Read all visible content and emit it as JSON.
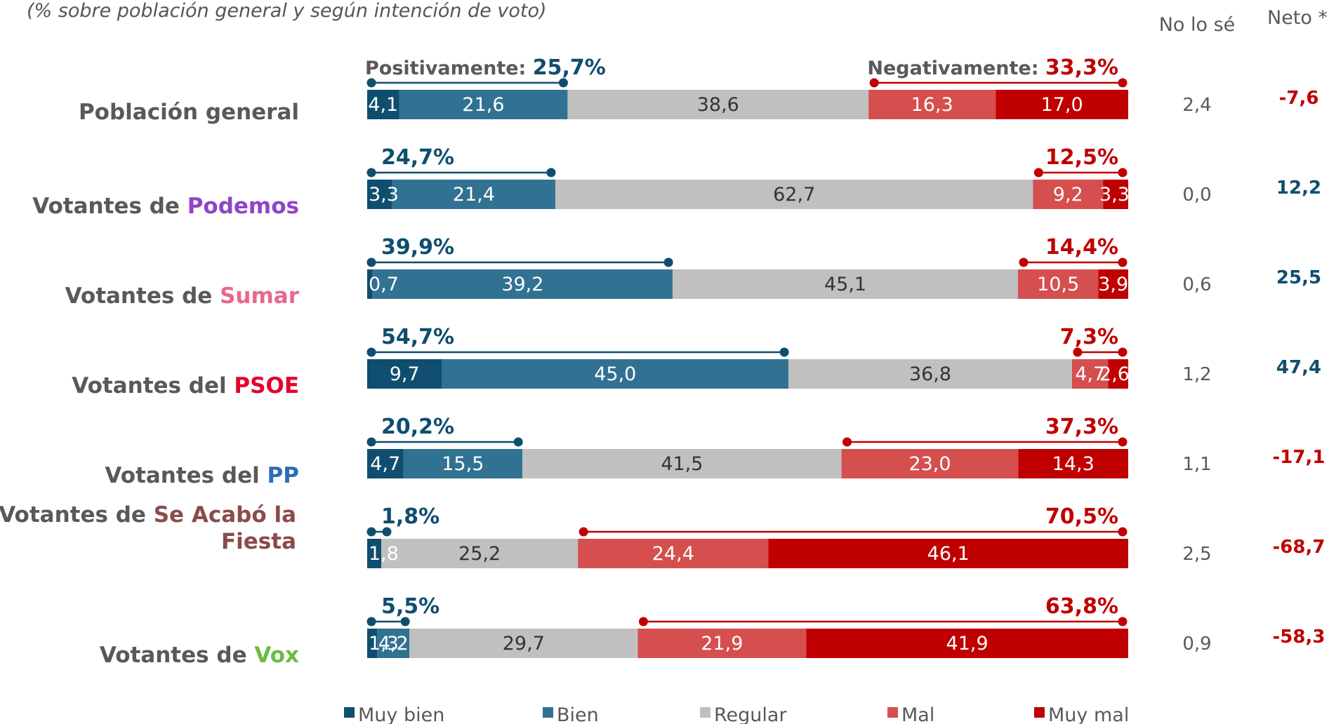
{
  "chart_data": {
    "type": "bar",
    "subtitle": "(% sobre población general y según intención de voto)",
    "orientation": "horizontal-stacked-100",
    "series_names": [
      "Muy bien",
      "Bien",
      "Regular",
      "Mal",
      "Muy mal"
    ],
    "colors": {
      "muy_bien": "#0f4e6e",
      "bien": "#317292",
      "regular": "#c0c0c0",
      "mal": "#d54f4f",
      "muy_mal": "#c00000",
      "positive_text": "#0f4e6e",
      "negative_text": "#c00000",
      "label_gray": "#595959",
      "podemos": "#8e44c9",
      "sumar": "#e8678d",
      "psoe": "#e4002b",
      "pp": "#2e6cb5",
      "salf": "#8b4b4b",
      "vox": "#6bba45"
    },
    "column_headers": {
      "no_lo_se": "No lo sé",
      "neto": "Neto *"
    },
    "summary_prefix": {
      "positive": "Positivamente: ",
      "negative": "Negativamente: "
    },
    "rows": [
      {
        "label_prefix": "Población general",
        "label_party": "",
        "party_color_key": "",
        "values": [
          4.1,
          21.6,
          38.6,
          16.3,
          17.0
        ],
        "value_labels": [
          "4,1",
          "21,6",
          "38,6",
          "16,3",
          "17,0"
        ],
        "positive": "25,7%",
        "negative": "33,3%",
        "no_lo_se": "2,4",
        "neto": "-7,6",
        "neto_sign": "negative"
      },
      {
        "label_prefix": "Votantes de ",
        "label_party": "Podemos",
        "party_color_key": "podemos",
        "values": [
          3.3,
          21.4,
          62.7,
          9.2,
          3.3
        ],
        "value_labels": [
          "3,3",
          "21,4",
          "62,7",
          "9,2",
          "3,3"
        ],
        "positive": "24,7%",
        "negative": "12,5%",
        "no_lo_se": "0,0",
        "neto": "12,2",
        "neto_sign": "positive"
      },
      {
        "label_prefix": "Votantes de ",
        "label_party": "Sumar",
        "party_color_key": "sumar",
        "values": [
          0.7,
          39.2,
          45.1,
          10.5,
          3.9
        ],
        "value_labels": [
          "0,7",
          "39,2",
          "45,1",
          "10,5",
          "3,9"
        ],
        "positive": "39,9%",
        "negative": "14,4%",
        "no_lo_se": "0,6",
        "neto": "25,5",
        "neto_sign": "positive"
      },
      {
        "label_prefix": "Votantes del ",
        "label_party": "PSOE",
        "party_color_key": "psoe",
        "values": [
          9.7,
          45.0,
          36.8,
          4.7,
          2.6
        ],
        "value_labels": [
          "9,7",
          "45,0",
          "36,8",
          "4,7",
          "2,6"
        ],
        "positive": "54,7%",
        "negative": "7,3%",
        "no_lo_se": "1,2",
        "neto": "47,4",
        "neto_sign": "positive"
      },
      {
        "label_prefix": "Votantes del ",
        "label_party": "PP",
        "party_color_key": "pp",
        "values": [
          4.7,
          15.5,
          41.5,
          23.0,
          14.3
        ],
        "value_labels": [
          "4,7",
          "15,5",
          "41,5",
          "23,0",
          "14,3"
        ],
        "positive": "20,2%",
        "negative": "37,3%",
        "no_lo_se": "1,1",
        "neto": "-17,1",
        "neto_sign": "negative"
      },
      {
        "label_prefix": "Votantes de ",
        "label_party": "Se Acabó la",
        "label_line2": "Fiesta",
        "party_color_key": "salf",
        "values": [
          1.8,
          0.0,
          25.2,
          24.4,
          46.1
        ],
        "value_labels": [
          "1,8",
          "",
          "25,2",
          "24,4",
          "46,1"
        ],
        "positive": "1,8%",
        "negative": "70,5%",
        "no_lo_se": "2,5",
        "neto": "-68,7",
        "neto_sign": "negative"
      },
      {
        "label_prefix": "Votantes de ",
        "label_party": "Vox",
        "party_color_key": "vox",
        "values": [
          1.3,
          4.2,
          29.7,
          21.9,
          41.9
        ],
        "value_labels": [
          "1,3",
          "4,2",
          "29,7",
          "21,9",
          "41,9"
        ],
        "positive": "5,5%",
        "negative": "63,8%",
        "no_lo_se": "0,9",
        "neto": "-58,3",
        "neto_sign": "negative"
      }
    ]
  }
}
